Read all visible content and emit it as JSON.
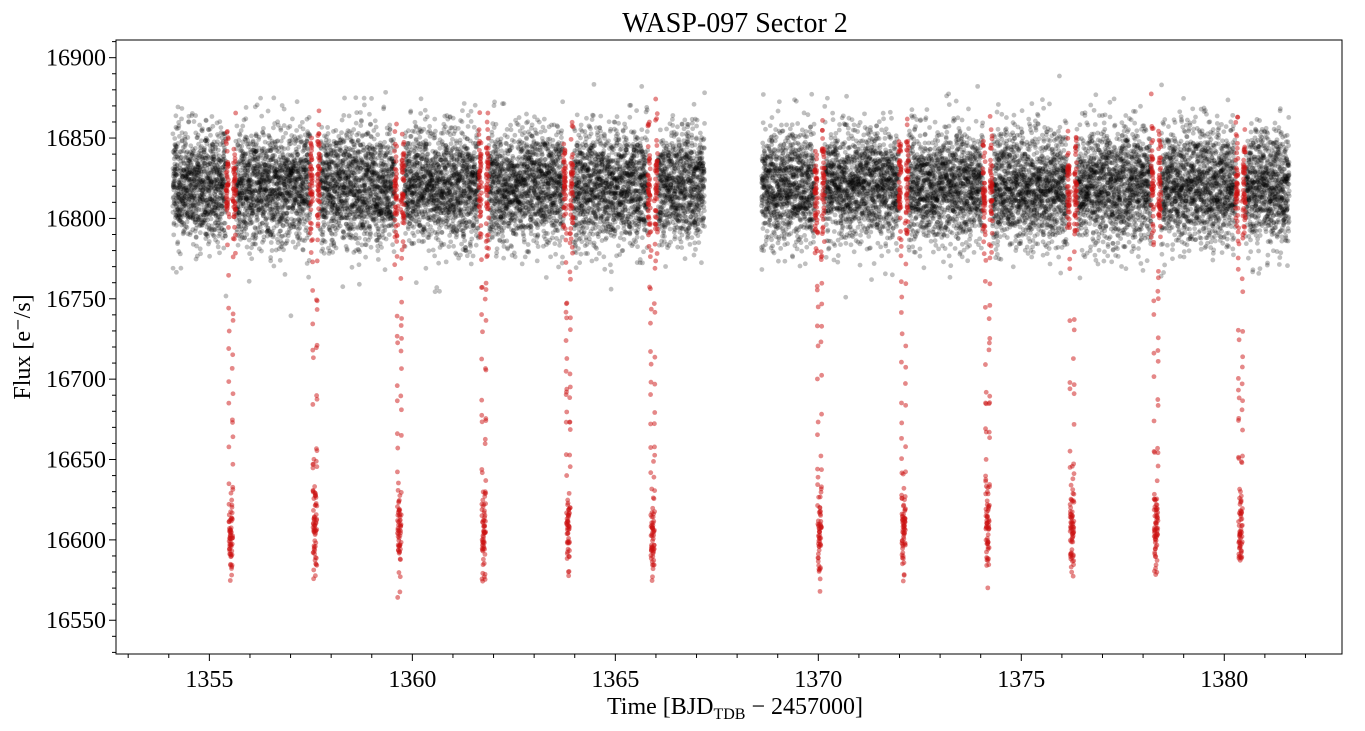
{
  "chart_data": {
    "type": "scatter",
    "title": "WASP-097 Sector 2",
    "xlabel": {
      "prefix": "Time [BJD",
      "subscript": "TDB",
      "suffix": " − 2457000]"
    },
    "ylabel": "Flux [e⁻/s]",
    "xlim": [
      1352.7,
      1382.9
    ],
    "ylim": [
      16529,
      16911
    ],
    "x_ticks": [
      1355,
      1360,
      1365,
      1370,
      1375,
      1380
    ],
    "y_ticks": [
      16550,
      16600,
      16650,
      16700,
      16750,
      16800,
      16850,
      16900
    ],
    "x_minor_step": 1,
    "y_minor_step": 10,
    "grid": false,
    "colors": {
      "out_of_transit": "#000000",
      "in_transit": "#cc1111"
    },
    "baseline_flux": 16820,
    "baseline_scatter": 18,
    "transit_depth_flux": 16605,
    "transit_duration_days": 0.12,
    "orbit_segments": [
      [
        1354.1,
        1367.2
      ],
      [
        1368.6,
        1381.6
      ]
    ],
    "transit_mid_times": [
      1355.53,
      1357.6,
      1359.68,
      1361.76,
      1363.84,
      1365.92,
      1370.03,
      1372.1,
      1374.17,
      1376.25,
      1378.32,
      1380.4
    ],
    "series": [
      {
        "name": "",
        "description_points": "out-of-transit flux, black"
      },
      {
        "name": "",
        "description_points": "in-transit flux, red"
      }
    ]
  }
}
